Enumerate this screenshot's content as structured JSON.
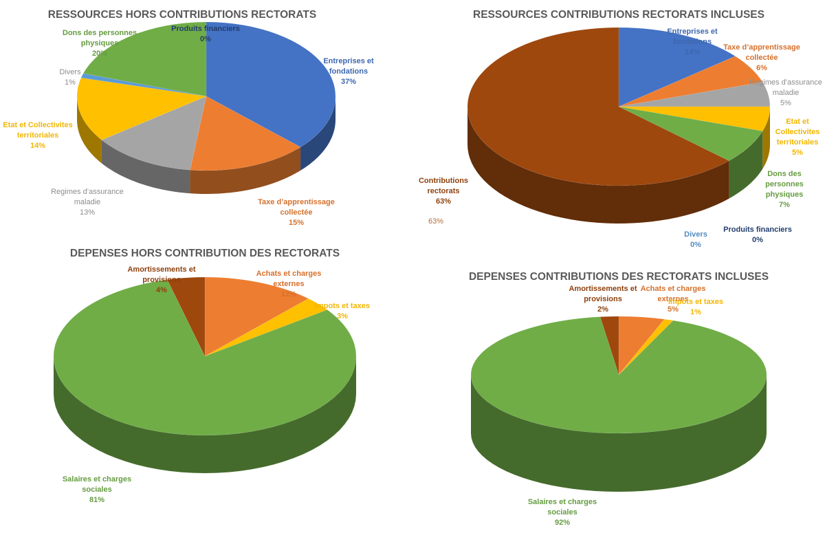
{
  "chart_data": [
    {
      "type": "pie",
      "title": "RESSOURCES HORS CONTRIBUTIONS RECTORATS",
      "categories": [
        "Entreprises et fondations",
        "Taxe d'apprentissage collectée",
        "Regimes d'assurance maladie",
        "Etat et Collectivites territoriales",
        "Divers",
        "Dons des personnes physiques",
        "Produits financiers"
      ],
      "values": [
        37,
        15,
        13,
        14,
        1,
        20,
        0
      ],
      "data_labels": [
        "37%",
        "15%",
        "13%",
        "14%",
        "1%",
        "20%",
        "0%"
      ],
      "colors": [
        "#4472C4",
        "#ED7D31",
        "#A5A5A5",
        "#FFC000",
        "#5B9BD5",
        "#70AD47",
        "#264478"
      ],
      "legend": "none"
    },
    {
      "type": "pie",
      "title": "RESSOURCES CONTRIBUTIONS RECTORATS INCLUSES",
      "categories": [
        "Entreprises et fondations",
        "Taxe d'apprentissage collectée",
        "Regimes d'assurance maladie",
        "Etat et Collectivites territoriales",
        "Dons des personnes physiques",
        "Produits financiers",
        "Divers",
        "Contributions rectorats"
      ],
      "values": [
        14,
        6,
        5,
        5,
        7,
        0,
        0,
        63
      ],
      "data_labels": [
        "14%",
        "6%",
        "5%",
        "5%",
        "7%",
        "0%",
        "0%",
        "63%"
      ],
      "extra_label": "63%",
      "colors": [
        "#4472C4",
        "#ED7D31",
        "#A5A5A5",
        "#FFC000",
        "#70AD47",
        "#264478",
        "#5B9BD5",
        "#9E480E"
      ],
      "legend": "none"
    },
    {
      "type": "pie",
      "title": "DEPENSES HORS CONTRIBUTION DES RECTORATS",
      "categories": [
        "Achats et charges externes",
        "Impots et taxes",
        "Salaires et charges sociales",
        "Amortissements et provisions"
      ],
      "values": [
        12,
        3,
        81,
        4
      ],
      "data_labels": [
        "12%",
        "3%",
        "81%",
        "4%"
      ],
      "colors": [
        "#ED7D31",
        "#FFC000",
        "#70AD47",
        "#9E480E"
      ],
      "legend": "none"
    },
    {
      "type": "pie",
      "title": "DEPENSES CONTRIBUTIONS DES RECTORATS INCLUSES",
      "categories": [
        "Achats et charges externes",
        "Impots et taxes",
        "Salaires et charges sociales",
        "Amortissements et provisions"
      ],
      "values": [
        5,
        1,
        92,
        2
      ],
      "data_labels": [
        "5%",
        "1%",
        "92%",
        "2%"
      ],
      "colors": [
        "#ED7D31",
        "#FFC000",
        "#70AD47",
        "#9E480E"
      ],
      "legend": "none"
    }
  ]
}
